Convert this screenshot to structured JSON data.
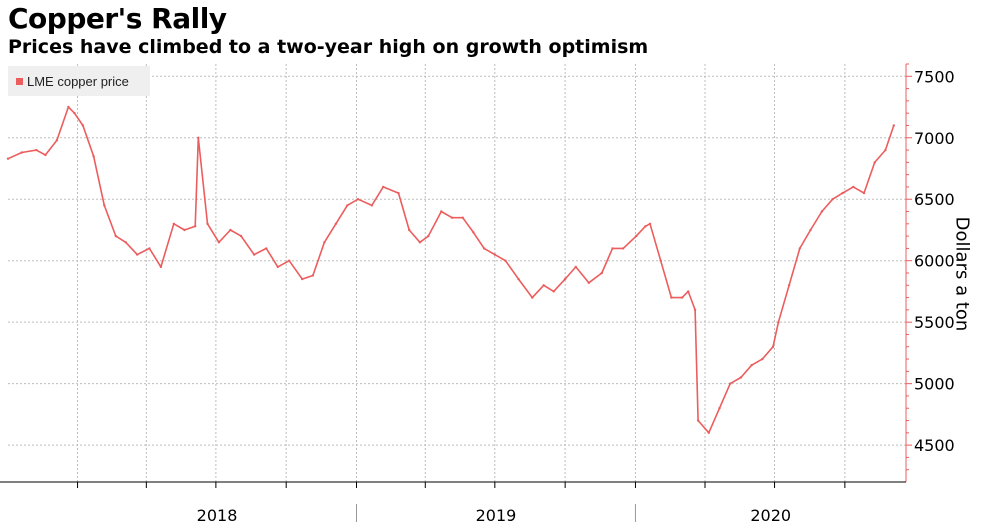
{
  "chart_data": {
    "type": "line",
    "title": "Copper's Rally",
    "subtitle": "Prices have climbed to a two-year high on growth optimism",
    "ylabel": "Dollars a ton",
    "xlabel": "",
    "legend": "top-left",
    "grid": true,
    "ylim": [
      4200,
      7600
    ],
    "yticks": [
      4500,
      5000,
      5500,
      6000,
      6500,
      7000,
      7500
    ],
    "xticks": [
      "2018",
      "2019",
      "2020"
    ],
    "colors": {
      "series": "#ec5d5d",
      "grid": "#bdbdbd",
      "axis": "#ec5d5d"
    },
    "series": [
      {
        "name": "LME copper price",
        "x": [
          "2017-10-02",
          "2017-10-20",
          "2017-11-08",
          "2017-11-20",
          "2017-12-05",
          "2017-12-20",
          "2017-12-28",
          "2018-01-08",
          "2018-01-22",
          "2018-02-05",
          "2018-02-20",
          "2018-03-05",
          "2018-03-20",
          "2018-04-05",
          "2018-04-20",
          "2018-05-07",
          "2018-05-21",
          "2018-06-04",
          "2018-06-08",
          "2018-06-20",
          "2018-07-05",
          "2018-07-20",
          "2018-08-03",
          "2018-08-20",
          "2018-09-05",
          "2018-09-20",
          "2018-10-05",
          "2018-10-22",
          "2018-11-05",
          "2018-11-20",
          "2018-12-05",
          "2018-12-20",
          "2019-01-03",
          "2019-01-21",
          "2019-02-05",
          "2019-02-25",
          "2019-03-11",
          "2019-03-25",
          "2019-04-05",
          "2019-04-22",
          "2019-05-06",
          "2019-05-20",
          "2019-06-03",
          "2019-06-17",
          "2019-07-01",
          "2019-07-15",
          "2019-08-01",
          "2019-08-19",
          "2019-09-03",
          "2019-09-16",
          "2019-10-01",
          "2019-10-15",
          "2019-11-01",
          "2019-11-18",
          "2019-12-02",
          "2019-12-16",
          "2020-01-02",
          "2020-01-14",
          "2020-01-20",
          "2020-02-03",
          "2020-02-17",
          "2020-03-02",
          "2020-03-10",
          "2020-03-19",
          "2020-03-23",
          "2020-04-06",
          "2020-04-20",
          "2020-05-04",
          "2020-05-18",
          "2020-06-01",
          "2020-06-15",
          "2020-06-29",
          "2020-07-06",
          "2020-07-20",
          "2020-08-03",
          "2020-08-17",
          "2020-09-01",
          "2020-09-15",
          "2020-09-28",
          "2020-10-12",
          "2020-10-26",
          "2020-11-09",
          "2020-11-23",
          "2020-12-04"
        ],
        "values": [
          6830,
          6880,
          6900,
          6860,
          6980,
          7250,
          7200,
          7100,
          6850,
          6450,
          6200,
          6150,
          6050,
          6100,
          5950,
          6300,
          6250,
          6280,
          7000,
          6300,
          6150,
          6250,
          6200,
          6050,
          6100,
          5950,
          6000,
          5850,
          5880,
          6150,
          6300,
          6450,
          6500,
          6450,
          6600,
          6550,
          6250,
          6150,
          6200,
          6400,
          6350,
          6350,
          6230,
          6100,
          6050,
          6000,
          5850,
          5700,
          5800,
          5750,
          5850,
          5950,
          5820,
          5900,
          6100,
          6100,
          6200,
          6280,
          6300,
          6000,
          5700,
          5700,
          5750,
          5600,
          4700,
          4600,
          4800,
          5000,
          5050,
          5150,
          5200,
          5300,
          5500,
          5800,
          6100,
          6250,
          6400,
          6500,
          6550,
          6600,
          6550,
          6800,
          6900,
          7100
        ]
      }
    ]
  }
}
